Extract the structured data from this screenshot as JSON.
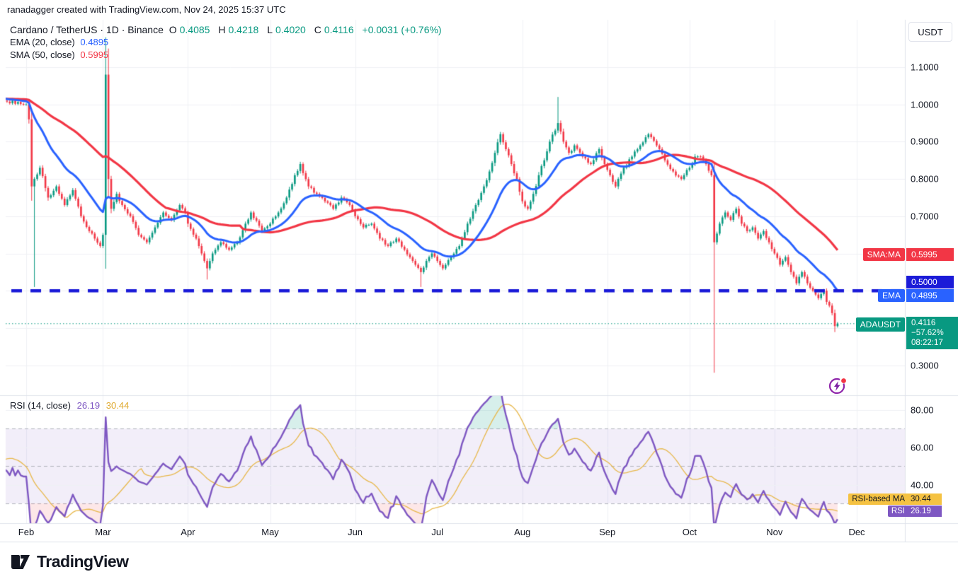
{
  "attribution": "ranadagger created with TradingView.com, Nov 24, 2025 15:37 UTC",
  "header": {
    "symbol": "Cardano / TetherUS · 1D · Binance",
    "ohlc": [
      {
        "k": "O",
        "v": "0.4085"
      },
      {
        "k": "H",
        "v": "0.4218"
      },
      {
        "k": "L",
        "v": "0.4020"
      },
      {
        "k": "C",
        "v": "0.4116"
      }
    ],
    "change": "+0.0031 (+0.76%)",
    "ema_row": {
      "label": "EMA (20, close)",
      "value": "0.4895"
    },
    "sma_row": {
      "label": "SMA (50, close)",
      "value": "0.5995"
    }
  },
  "rsi_legend": {
    "label": "RSI (14, close)",
    "rsi": "26.19",
    "ma": "30.44"
  },
  "scale": {
    "currency": "USDT",
    "price_ticks": [
      {
        "label": "1.1000",
        "value": 1.1
      },
      {
        "label": "1.0000",
        "value": 1.0
      },
      {
        "label": "0.9000",
        "value": 0.9
      },
      {
        "label": "0.8000",
        "value": 0.8
      },
      {
        "label": "0.7000",
        "value": 0.7
      },
      {
        "label": "0.3000",
        "value": 0.3
      }
    ],
    "badges": {
      "sma": {
        "label": "SMA:MA",
        "value": "0.5995",
        "color": "#F23645"
      },
      "level": {
        "value": "0.5000",
        "color": "#1B1BD8"
      },
      "ema": {
        "label": "EMA",
        "value": "0.4895",
        "color": "#2962FF"
      },
      "symbol": {
        "label": "ADAUSDT",
        "price": "0.4116",
        "change": "−57.62%",
        "countdown": "08:22:17",
        "color": "#089981"
      }
    },
    "rsi_ticks": [
      {
        "label": "80.00",
        "value": 80
      },
      {
        "label": "60.00",
        "value": 60
      },
      {
        "label": "40.00",
        "value": 40
      }
    ],
    "rsi_badges": {
      "ma": {
        "label": "RSI-based MA",
        "value": "30.44",
        "color": "#F5C242",
        "text": "#131722"
      },
      "rsi": {
        "label": "RSI",
        "value": "26.19",
        "color": "#7E57C2",
        "text": "#ffffff"
      }
    }
  },
  "time_axis": {
    "months": [
      {
        "label": "Feb",
        "day": 0
      },
      {
        "label": "Mar",
        "day": 28
      },
      {
        "label": "Apr",
        "day": 59
      },
      {
        "label": "May",
        "day": 89
      },
      {
        "label": "Jun",
        "day": 120
      },
      {
        "label": "Jul",
        "day": 150
      },
      {
        "label": "Aug",
        "day": 181
      },
      {
        "label": "Sep",
        "day": 212
      },
      {
        "label": "Oct",
        "day": 242
      },
      {
        "label": "Nov",
        "day": 273
      },
      {
        "label": "Dec",
        "day": 303
      }
    ]
  },
  "logo": {
    "text": "TradingView"
  },
  "chart_data": {
    "type": "candlestick",
    "symbol": "ADAUSDT",
    "exchange": "Binance",
    "interval": "1D",
    "last_bar": {
      "open": 0.4085,
      "high": 0.4218,
      "low": 0.402,
      "close": 0.4116,
      "change": 0.0031,
      "change_pct": 0.76
    },
    "price_axis": {
      "tick_values": [
        0.3,
        0.4,
        0.5,
        0.6,
        0.7,
        0.8,
        0.9,
        1.0,
        1.1
      ],
      "visible_range": [
        0.22,
        1.23
      ]
    },
    "levels": {
      "horizontal_line": 0.5,
      "current_price": 0.4116,
      "current_change_pct": -57.62
    },
    "candles": {
      "lead_in_anchors": [
        [
          -50,
          1.02
        ],
        [
          -44,
          1.08
        ],
        [
          -38,
          0.97
        ],
        [
          -30,
          1.03
        ],
        [
          -22,
          0.97
        ],
        [
          -14,
          1.04
        ],
        [
          -8,
          1.01
        ],
        [
          -1,
          1.0
        ]
      ],
      "anchors": [
        [
          0,
          1.0
        ],
        [
          1,
          0.96
        ],
        [
          2,
          0.78
        ],
        [
          3,
          0.8
        ],
        [
          5,
          0.83
        ],
        [
          8,
          0.75
        ],
        [
          11,
          0.78
        ],
        [
          14,
          0.73
        ],
        [
          17,
          0.77
        ],
        [
          20,
          0.7
        ],
        [
          23,
          0.66
        ],
        [
          25,
          0.64
        ],
        [
          27,
          0.62
        ],
        [
          28,
          0.65
        ],
        [
          29,
          1.08
        ],
        [
          30,
          0.8
        ],
        [
          31,
          0.72
        ],
        [
          33,
          0.76
        ],
        [
          35,
          0.73
        ],
        [
          38,
          0.7
        ],
        [
          41,
          0.65
        ],
        [
          44,
          0.63
        ],
        [
          47,
          0.67
        ],
        [
          50,
          0.71
        ],
        [
          53,
          0.69
        ],
        [
          56,
          0.73
        ],
        [
          58,
          0.71
        ],
        [
          59,
          0.68
        ],
        [
          62,
          0.64
        ],
        [
          64,
          0.6
        ],
        [
          66,
          0.56
        ],
        [
          68,
          0.6
        ],
        [
          71,
          0.63
        ],
        [
          74,
          0.61
        ],
        [
          77,
          0.63
        ],
        [
          80,
          0.68
        ],
        [
          82,
          0.71
        ],
        [
          86,
          0.66
        ],
        [
          89,
          0.68
        ],
        [
          92,
          0.71
        ],
        [
          95,
          0.75
        ],
        [
          98,
          0.81
        ],
        [
          100,
          0.84
        ],
        [
          103,
          0.78
        ],
        [
          106,
          0.76
        ],
        [
          109,
          0.74
        ],
        [
          112,
          0.72
        ],
        [
          115,
          0.75
        ],
        [
          118,
          0.73
        ],
        [
          120,
          0.7
        ],
        [
          123,
          0.67
        ],
        [
          126,
          0.68
        ],
        [
          129,
          0.64
        ],
        [
          132,
          0.62
        ],
        [
          135,
          0.64
        ],
        [
          138,
          0.61
        ],
        [
          141,
          0.58
        ],
        [
          144,
          0.55
        ],
        [
          146,
          0.58
        ],
        [
          148,
          0.6
        ],
        [
          150,
          0.58
        ],
        [
          152,
          0.56
        ],
        [
          155,
          0.59
        ],
        [
          158,
          0.62
        ],
        [
          161,
          0.68
        ],
        [
          164,
          0.73
        ],
        [
          167,
          0.78
        ],
        [
          169,
          0.82
        ],
        [
          171,
          0.87
        ],
        [
          173,
          0.92
        ],
        [
          175,
          0.88
        ],
        [
          177,
          0.84
        ],
        [
          179,
          0.8
        ],
        [
          181,
          0.74
        ],
        [
          183,
          0.72
        ],
        [
          185,
          0.76
        ],
        [
          187,
          0.81
        ],
        [
          189,
          0.85
        ],
        [
          191,
          0.9
        ],
        [
          193,
          0.93
        ],
        [
          194,
          0.95
        ],
        [
          196,
          0.9
        ],
        [
          198,
          0.87
        ],
        [
          200,
          0.89
        ],
        [
          203,
          0.86
        ],
        [
          206,
          0.84
        ],
        [
          209,
          0.88
        ],
        [
          211,
          0.84
        ],
        [
          213,
          0.81
        ],
        [
          215,
          0.78
        ],
        [
          218,
          0.83
        ],
        [
          221,
          0.86
        ],
        [
          224,
          0.89
        ],
        [
          227,
          0.92
        ],
        [
          230,
          0.89
        ],
        [
          233,
          0.85
        ],
        [
          236,
          0.82
        ],
        [
          239,
          0.8
        ],
        [
          242,
          0.83
        ],
        [
          244,
          0.86
        ],
        [
          246,
          0.86
        ],
        [
          248,
          0.84
        ],
        [
          250,
          0.81
        ],
        [
          251,
          0.63
        ],
        [
          253,
          0.68
        ],
        [
          255,
          0.71
        ],
        [
          257,
          0.69
        ],
        [
          259,
          0.72
        ],
        [
          261,
          0.68
        ],
        [
          263,
          0.66
        ],
        [
          265,
          0.67
        ],
        [
          267,
          0.64
        ],
        [
          269,
          0.66
        ],
        [
          271,
          0.63
        ],
        [
          273,
          0.6
        ],
        [
          275,
          0.57
        ],
        [
          277,
          0.59
        ],
        [
          279,
          0.55
        ],
        [
          281,
          0.52
        ],
        [
          283,
          0.55
        ],
        [
          285,
          0.52
        ],
        [
          287,
          0.5
        ],
        [
          289,
          0.48
        ],
        [
          291,
          0.5
        ],
        [
          292,
          0.47
        ],
        [
          293,
          0.46
        ],
        [
          294,
          0.44
        ],
        [
          295,
          0.405
        ],
        [
          296,
          0.4116
        ]
      ],
      "wick_events": {
        "3": {
          "low": 0.51
        },
        "29": {
          "high": 1.18
        },
        "30": {
          "high": 1.15
        },
        "66": {
          "low": 0.53
        },
        "144": {
          "low": 0.51
        },
        "194": {
          "high": 1.02
        },
        "251": {
          "low": 0.28
        },
        "295": {
          "low": 0.389
        }
      },
      "last_close": 0.4116
    },
    "indicators": {
      "ema": {
        "period": 20,
        "source": "close",
        "last": 0.4895,
        "color": "#2962FF"
      },
      "sma": {
        "period": 50,
        "source": "close",
        "last": 0.5995,
        "color": "#F23645"
      }
    },
    "rsi": {
      "period": 14,
      "source": "close",
      "last": 26.19,
      "ma_last": 30.44,
      "levels": [
        30,
        50,
        70
      ],
      "axis_ticks": [
        40,
        60,
        80
      ],
      "range_shown": [
        20,
        88
      ],
      "color": "#7E57C2",
      "ma_color": "#E8B84B",
      "band_fill": "rgba(126,87,194,0.10)",
      "overbought_fill": "rgba(8,153,129,0.16)",
      "oversold_fill": "rgba(242,54,69,0.12)"
    },
    "colors": {
      "up": "#089981",
      "down": "#F23645",
      "grid": "#EFF1F5",
      "dashed_grid": "#B2B5BE",
      "level_line": "#1B1BD8",
      "current_price_line": "#089981",
      "axis_text": "#131722",
      "border": "#E0E3EB"
    }
  }
}
